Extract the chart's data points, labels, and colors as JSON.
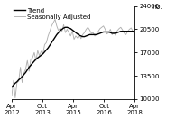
{
  "title": "",
  "ylabel": "no.",
  "ylim": [
    10000,
    24000
  ],
  "yticks": [
    10000,
    13500,
    17000,
    20500,
    24000
  ],
  "ytick_labels": [
    "10000",
    "13500",
    "17000",
    "20500",
    "24000"
  ],
  "legend_entries": [
    "Trend",
    "Seasonally Adjusted"
  ],
  "trend_color": "#000000",
  "sa_color": "#b0b0b0",
  "background_color": "#ffffff",
  "xtick_positions": [
    0,
    18,
    36,
    54,
    72
  ],
  "xtick_labels": [
    "Apr\n2012",
    "Oct\n2013",
    "Apr\n2015",
    "Oct\n2016",
    "Apr\n2018"
  ],
  "trend_data": [
    11800,
    12100,
    12400,
    12600,
    12900,
    13100,
    13400,
    13700,
    14000,
    14400,
    14800,
    15100,
    15400,
    15700,
    16000,
    16200,
    16400,
    16600,
    16800,
    17100,
    17400,
    17700,
    18100,
    18500,
    18900,
    19300,
    19700,
    20000,
    20300,
    20500,
    20700,
    20800,
    20800,
    20700,
    20600,
    20400,
    20200,
    20000,
    19800,
    19600,
    19500,
    19400,
    19400,
    19500,
    19600,
    19700,
    19700,
    19700,
    19700,
    19700,
    19800,
    19900,
    20000,
    20100,
    20100,
    20100,
    20100,
    20000,
    19900,
    19900,
    19900,
    20000,
    20100,
    20200,
    20200,
    20200,
    20200,
    20200,
    20200,
    20200,
    20200,
    20200
  ],
  "sa_data": [
    10500,
    12800,
    10200,
    12500,
    12700,
    14800,
    12500,
    13900,
    14500,
    15800,
    14200,
    16000,
    16200,
    17000,
    15800,
    17300,
    16500,
    17200,
    16800,
    18200,
    18500,
    19500,
    20200,
    21000,
    21500,
    22000,
    21000,
    20300,
    20700,
    20200,
    21200,
    20000,
    20500,
    20000,
    19500,
    20200,
    19000,
    19500,
    19200,
    19800,
    19100,
    19700,
    20000,
    20500,
    20800,
    20400,
    19900,
    20000,
    19500,
    19800,
    20200,
    20600,
    20800,
    21000,
    20500,
    19800,
    20000,
    20500,
    19700,
    20000,
    19600,
    20300,
    20600,
    20800,
    20400,
    19900,
    19700,
    20200,
    20500,
    20700,
    20200,
    19800
  ]
}
